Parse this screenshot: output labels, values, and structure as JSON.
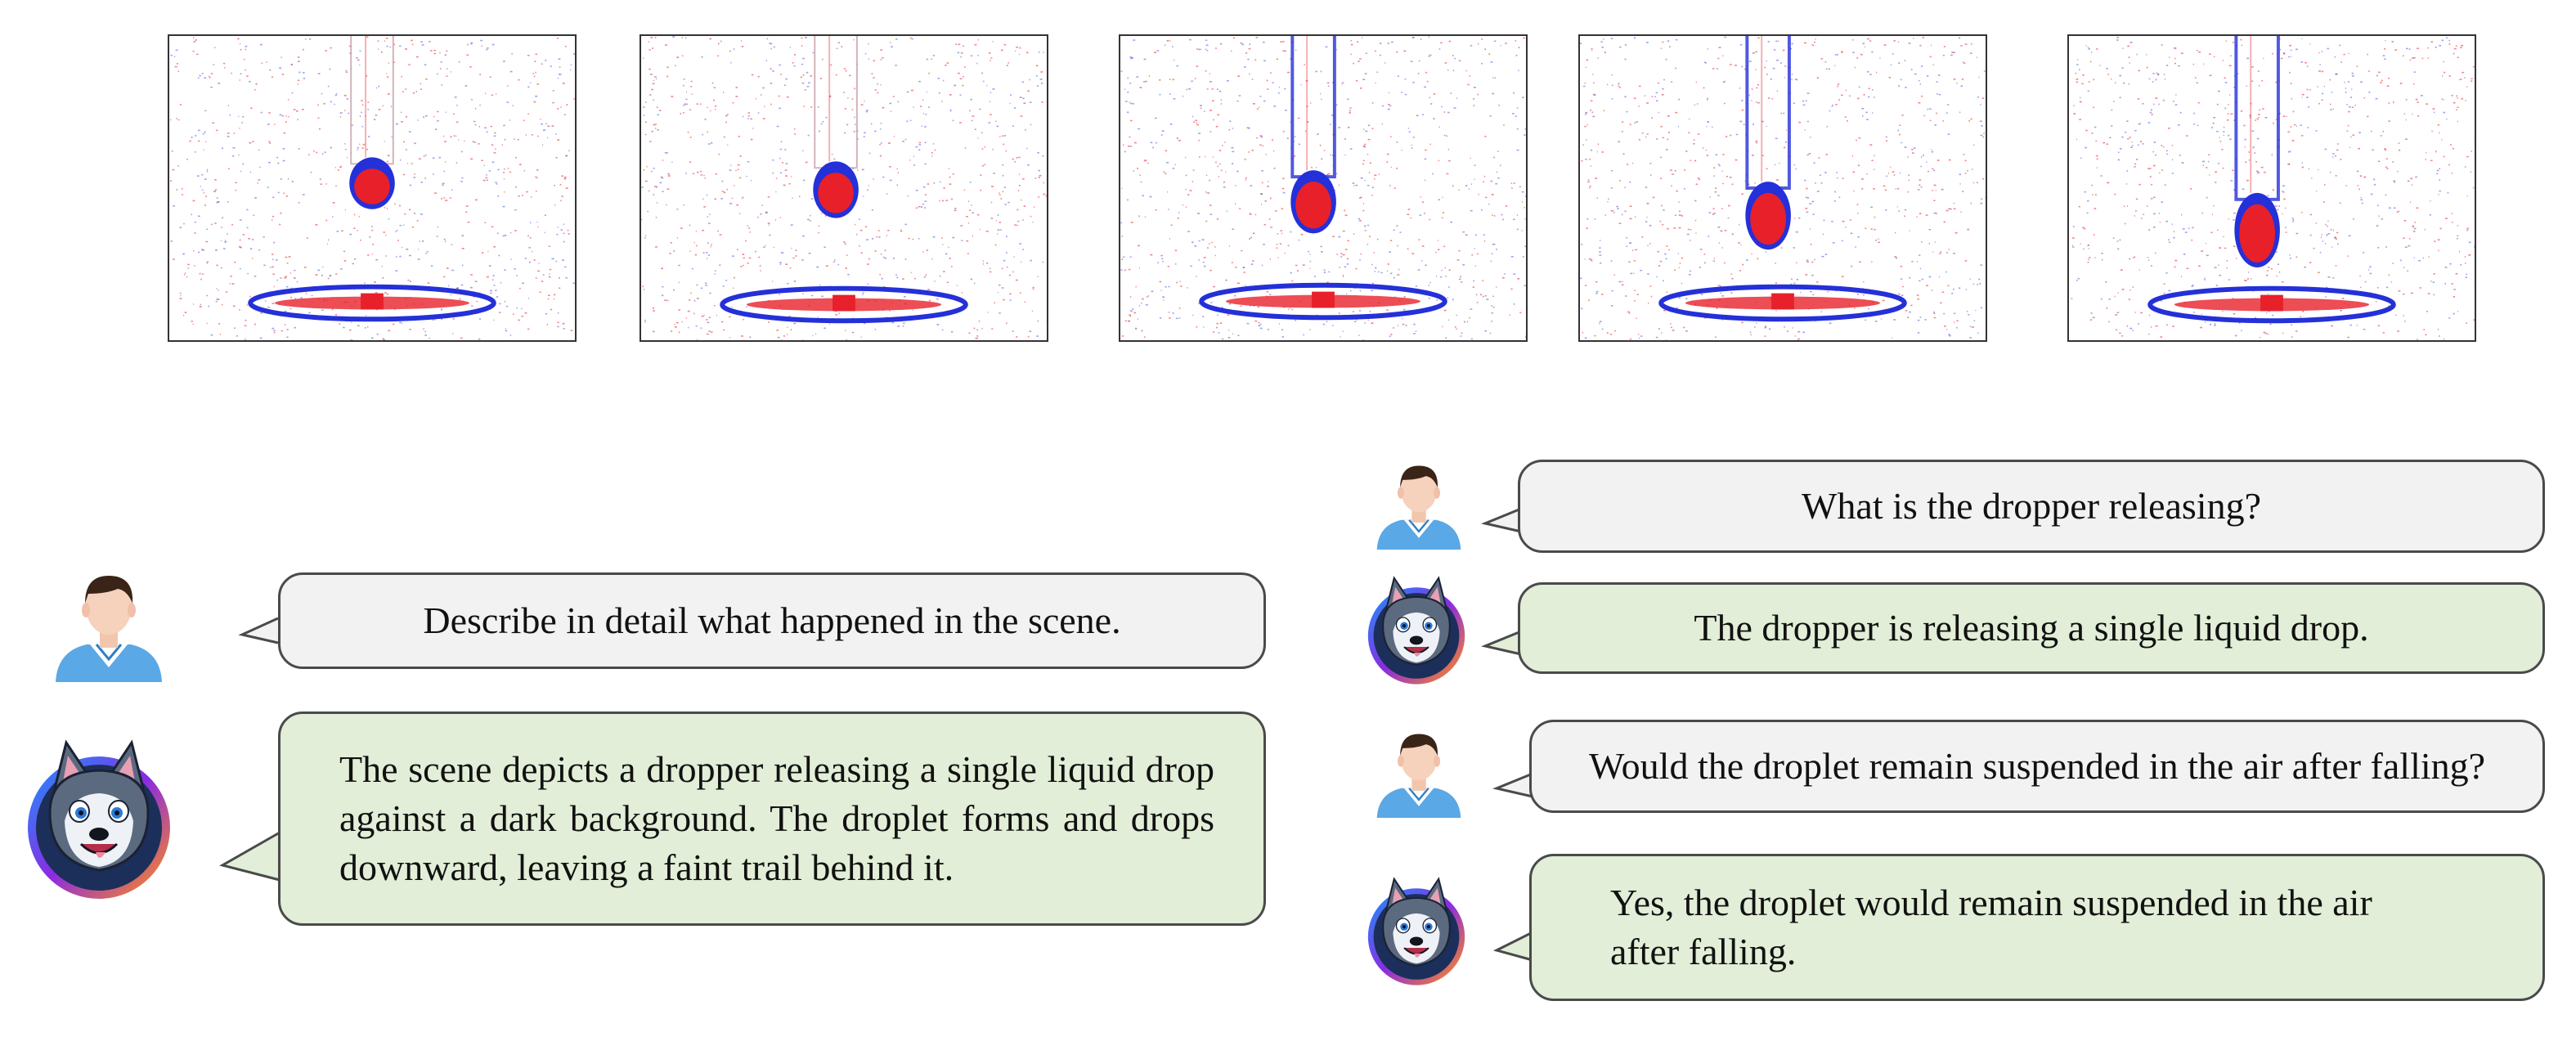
{
  "frames": [
    {
      "name": "frame-1"
    },
    {
      "name": "frame-2"
    },
    {
      "name": "frame-3"
    },
    {
      "name": "frame-4"
    },
    {
      "name": "frame-5"
    }
  ],
  "colors": {
    "user_bubble": "#f2f2f2",
    "bot_bubble": "#e2eed7",
    "bubble_border": "#4a4a4a",
    "event_positive": "#e8202a",
    "event_negative": "#2430d8",
    "avatar_shirt": "#5aa8e6"
  },
  "left_dialog": {
    "question": "Describe in detail what happened in the scene.",
    "answer": "The scene depicts a dropper releasing a single liquid drop against a dark background. The droplet forms and drops downward, leaving a faint trail behind it."
  },
  "right_dialog": {
    "q1": "What is the dropper releasing?",
    "a1": "The dropper is releasing a single liquid drop.",
    "q2": "Would the droplet remain suspended in the air after falling?",
    "a2": "Yes, the droplet would remain suspended in the air after falling."
  },
  "icons": {
    "user": "person-avatar-icon",
    "assistant": "husky-mascot-icon"
  }
}
